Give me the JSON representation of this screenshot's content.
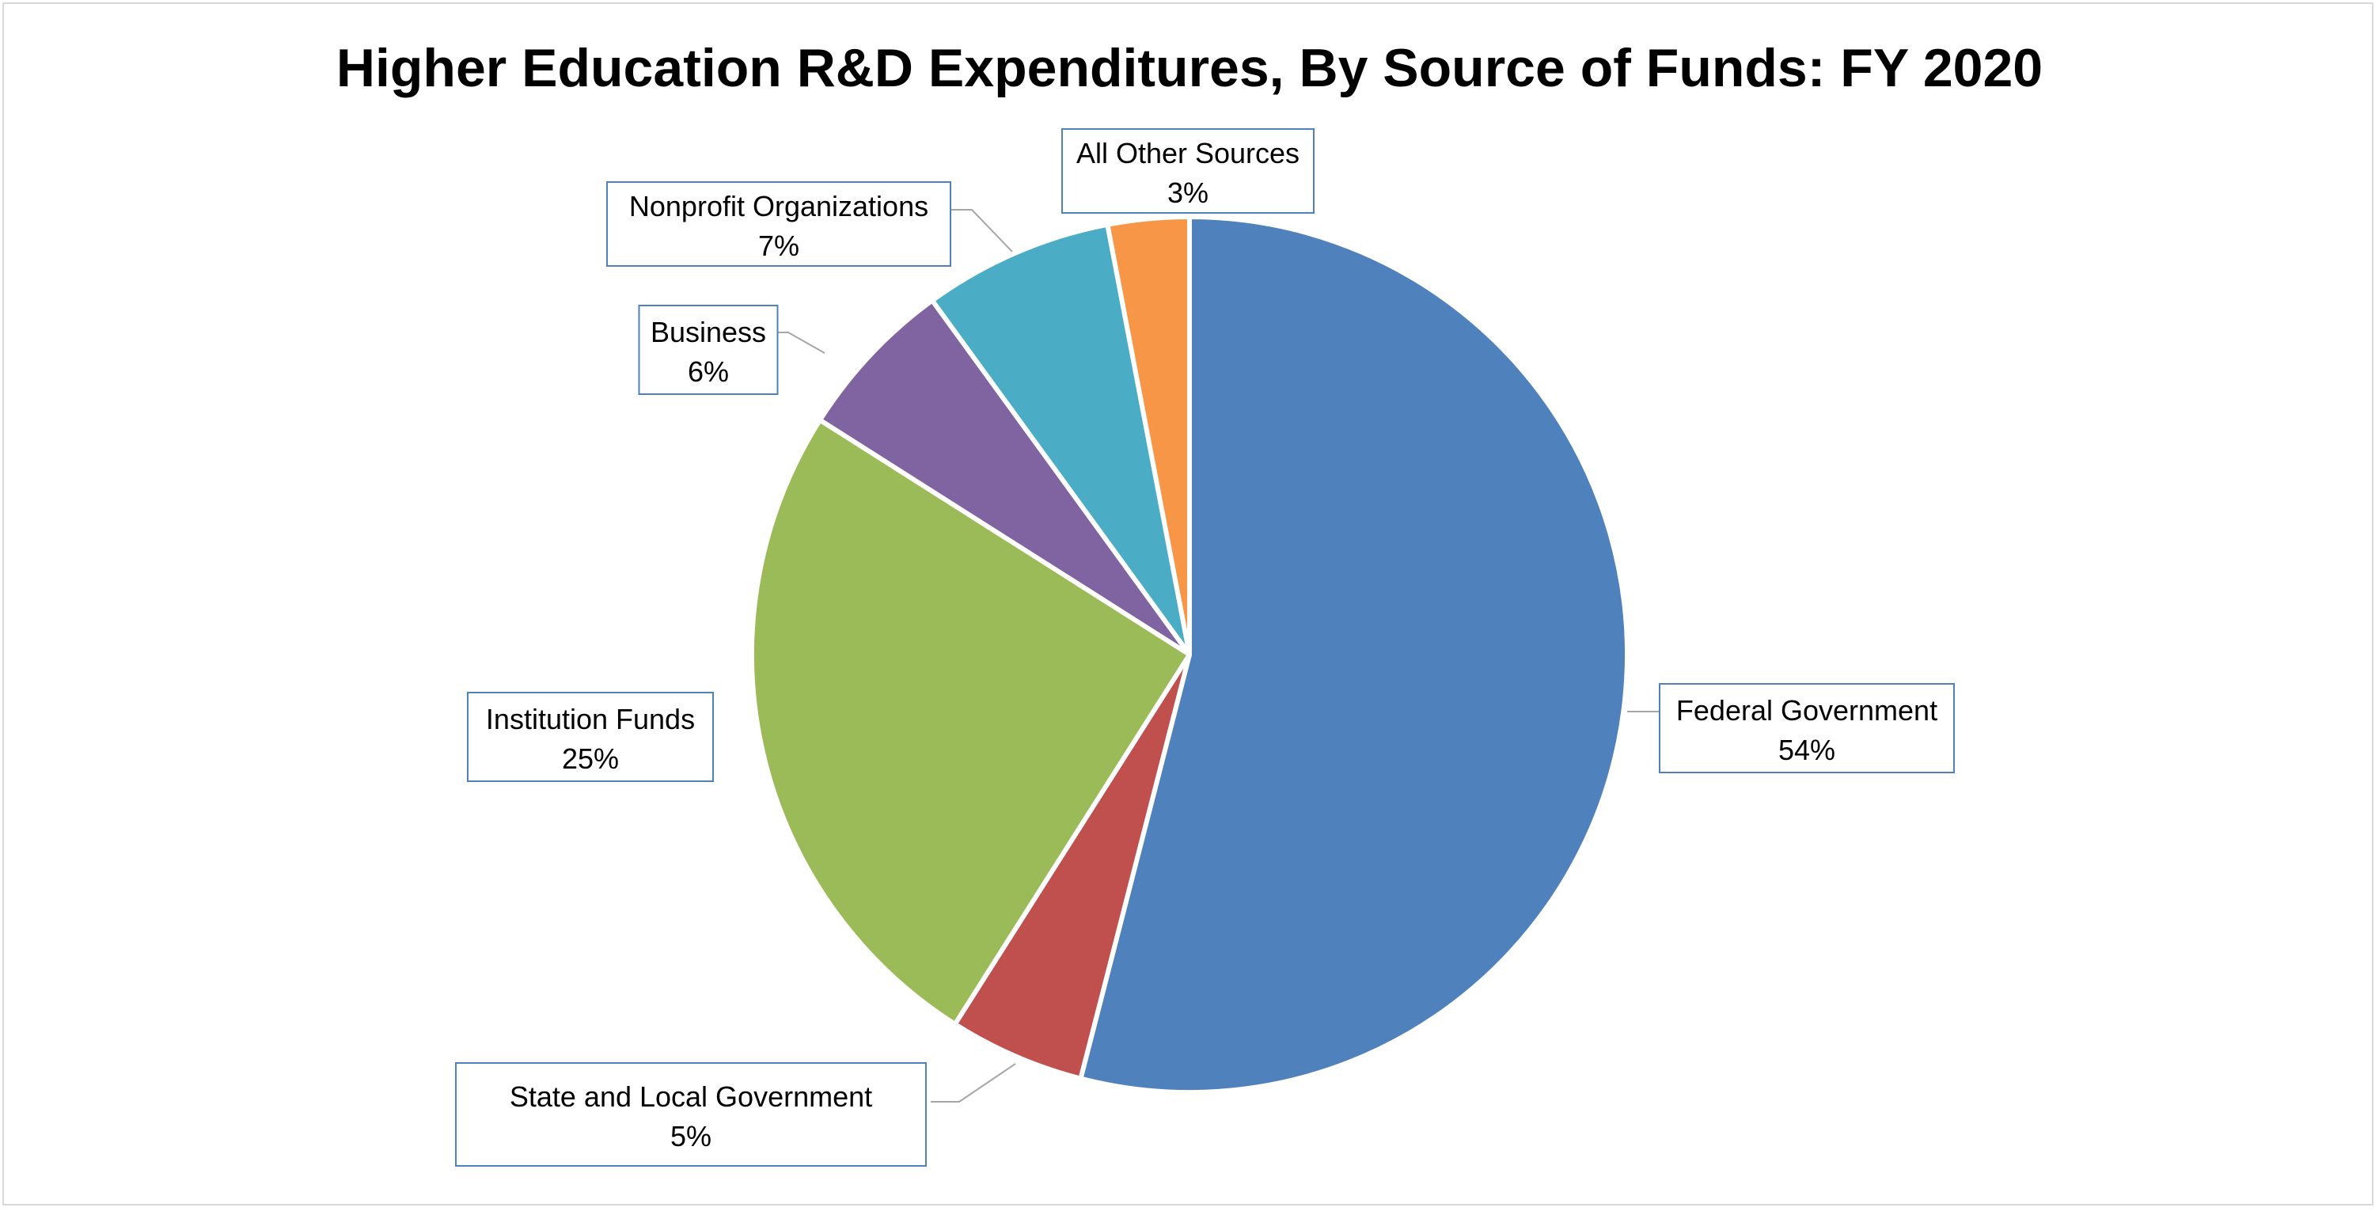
{
  "chart_data": {
    "type": "pie",
    "title": "Higher Education R&D Expenditures, By Source of Funds: FY 2020",
    "slices": [
      {
        "label": "Federal Government",
        "value": 54,
        "value_label": "54%",
        "color": "#4f81bd"
      },
      {
        "label": "State and Local Government",
        "value": 5,
        "value_label": "5%",
        "color": "#c0504d"
      },
      {
        "label": "Institution Funds",
        "value": 25,
        "value_label": "25%",
        "color": "#9bbb59"
      },
      {
        "label": "Business",
        "value": 6,
        "value_label": "6%",
        "color": "#8064a2"
      },
      {
        "label": "Nonprofit Organizations",
        "value": 7,
        "value_label": "7%",
        "color": "#4bacc6"
      },
      {
        "label": "All Other Sources",
        "value": 3,
        "value_label": "3%",
        "color": "#f79646"
      }
    ],
    "start_angle": "12 o'clock",
    "direction": "clockwise",
    "label_border_color": "#4f81bd",
    "leader_line_color": "#a6a6a6",
    "legend": "none"
  }
}
